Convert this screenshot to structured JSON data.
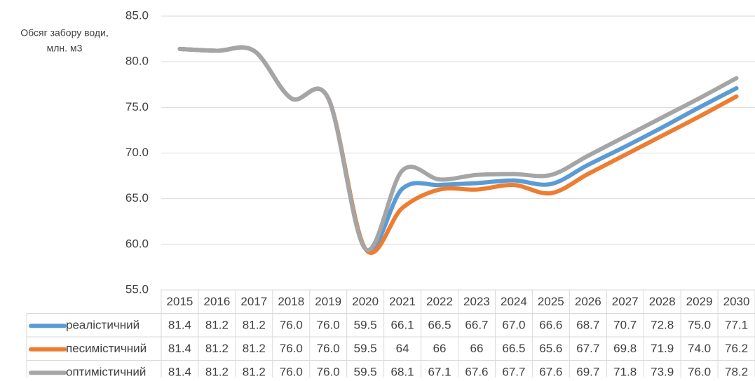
{
  "chart_data": {
    "type": "line",
    "y_label": [
      "Обсяг забору води,",
      "млн. м3"
    ],
    "categories": [
      "2015",
      "2016",
      "2017",
      "2018",
      "2019",
      "2020",
      "2021",
      "2022",
      "2023",
      "2024",
      "2025",
      "2026",
      "2027",
      "2028",
      "2029",
      "2030"
    ],
    "ylim": [
      55,
      85
    ],
    "yticks": [
      {
        "value": 55,
        "label": "55.0"
      },
      {
        "value": 60,
        "label": "60.0"
      },
      {
        "value": 65,
        "label": "65.0"
      },
      {
        "value": 70,
        "label": "70.0"
      },
      {
        "value": 75,
        "label": "75.0"
      },
      {
        "value": 80,
        "label": "80.0"
      },
      {
        "value": 85,
        "label": "85.0"
      }
    ],
    "grid": true,
    "series": [
      {
        "name": "реалістичний",
        "color": "#5b9bd5",
        "values": [
          81.4,
          81.2,
          81.2,
          76,
          76,
          59.5,
          66.1,
          66.5,
          66.7,
          67,
          66.6,
          68.7,
          70.7,
          72.8,
          75,
          77.1
        ],
        "value_labels": [
          "81.4",
          "81.2",
          "81.2",
          "76.0",
          "76.0",
          "59.5",
          "66.1",
          "66.5",
          "66.7",
          "67.0",
          "66.6",
          "68.7",
          "70.7",
          "72.8",
          "75.0",
          "77.1"
        ]
      },
      {
        "name": "песимістичний",
        "color": "#ed7d31",
        "values": [
          81.4,
          81.2,
          81.2,
          76,
          76,
          59.5,
          64,
          66,
          66,
          66.5,
          65.6,
          67.7,
          69.8,
          71.9,
          74,
          76.2
        ],
        "value_labels": [
          "81.4",
          "81.2",
          "81.2",
          "76.0",
          "76.0",
          "59.5",
          "64",
          "66",
          "66",
          "66.5",
          "65.6",
          "67.7",
          "69.8",
          "71.9",
          "74.0",
          "76.2"
        ]
      },
      {
        "name": "оптимістичний",
        "color": "#a5a5a5",
        "values": [
          81.4,
          81.2,
          81.2,
          76,
          76,
          59.5,
          68.1,
          67.1,
          67.6,
          67.7,
          67.6,
          69.7,
          71.8,
          73.9,
          76,
          78.2
        ],
        "value_labels": [
          "81.4",
          "81.2",
          "81.2",
          "76.0",
          "76.0",
          "59.5",
          "68.1",
          "67.1",
          "67.6",
          "67.7",
          "67.6",
          "69.7",
          "71.8",
          "73.9",
          "76.0",
          "78.2"
        ]
      }
    ]
  }
}
